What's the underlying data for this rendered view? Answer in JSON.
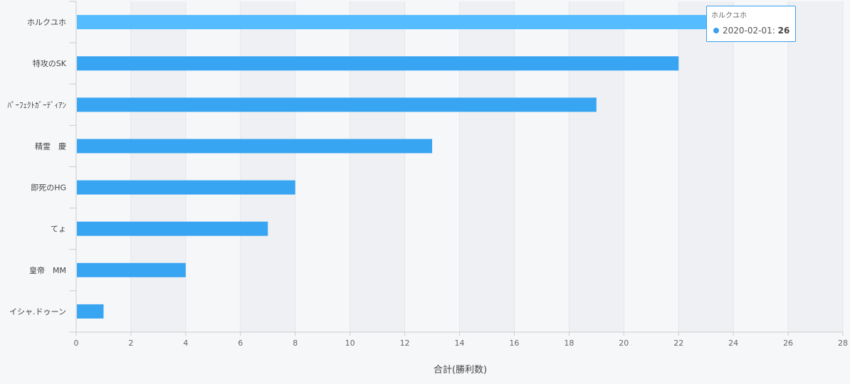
{
  "chart_data": {
    "type": "bar",
    "orientation": "horizontal",
    "categories": [
      "ホルクユホ",
      "特攻のSK",
      "ﾊﾟｰﾌｪｸﾄｶﾞｰﾃﾞｨｱﾝ",
      "精霊　慶",
      "即死のHG",
      "てょ",
      "皇帝　MM",
      "イシャ.ドゥーン"
    ],
    "values": [
      26,
      22,
      19,
      13,
      8,
      7,
      4,
      1
    ],
    "highlighted_index": 0,
    "xlabel": "合計(勝利数)",
    "ylabel": "",
    "xlim": [
      0,
      28
    ],
    "xticks": [
      0,
      2,
      4,
      6,
      8,
      10,
      12,
      14,
      16,
      18,
      20,
      22,
      24,
      26,
      28
    ],
    "grid": "vertical bands",
    "colors": {
      "bar": "#38a5f2",
      "bar_highlight": "#55bcff",
      "band": "#eef0f3",
      "background": "#f5f7f9"
    },
    "tooltip": {
      "title": "ホルクユホ",
      "series_label": "2020-02-01",
      "value": "26",
      "color": "#3aa0ee"
    }
  }
}
